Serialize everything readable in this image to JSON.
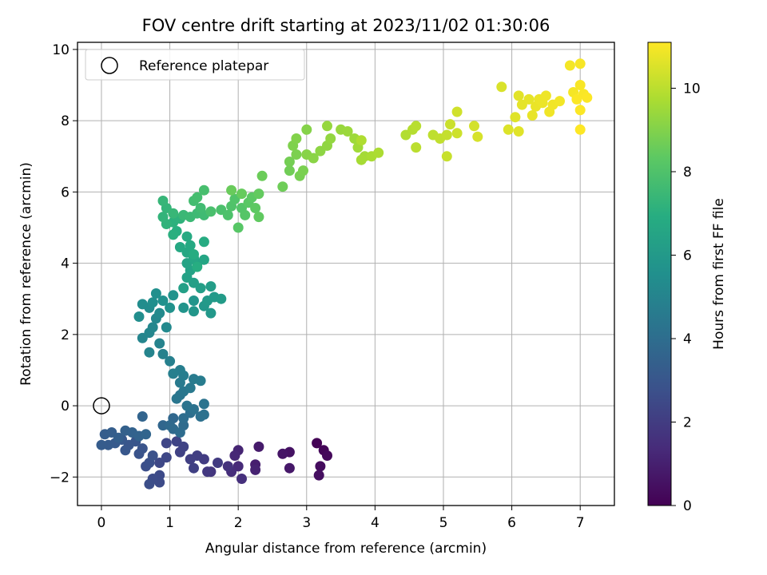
{
  "chart_data": {
    "type": "scatter",
    "title": "FOV centre drift starting at 2023/11/02 01:30:06",
    "xlabel": "Angular distance from reference (arcmin)",
    "ylabel": "Rotation from reference (arcmin)",
    "xlim": [
      -0.35,
      7.5
    ],
    "ylim": [
      -2.8,
      10.2
    ],
    "xticks": [
      0,
      1,
      2,
      3,
      4,
      5,
      6,
      7
    ],
    "xtick_labels": [
      "0",
      "1",
      "2",
      "3",
      "4",
      "5",
      "6",
      "7"
    ],
    "yticks": [
      -2,
      0,
      2,
      4,
      6,
      8,
      10
    ],
    "ytick_labels": [
      "−2",
      "0",
      "2",
      "4",
      "6",
      "8",
      "10"
    ],
    "grid": true,
    "legend": {
      "position": "upper-left",
      "entries": [
        {
          "label": "Reference platepar",
          "marker": "open-circle"
        }
      ]
    },
    "reference_point": {
      "x": 0,
      "y": 0
    },
    "colormap": "viridis",
    "colorbar": {
      "label": "Hours from first FF file",
      "range": [
        0,
        11.1
      ],
      "ticks": [
        0,
        2,
        4,
        6,
        8,
        10
      ],
      "tick_labels": [
        "0",
        "2",
        "4",
        "6",
        "8",
        "10"
      ]
    },
    "points": [
      [
        3.15,
        -1.05,
        0.05
      ],
      [
        3.25,
        -1.25,
        0.15
      ],
      [
        3.3,
        -1.4,
        0.25
      ],
      [
        3.2,
        -1.7,
        0.35
      ],
      [
        3.18,
        -1.95,
        0.45
      ],
      [
        2.75,
        -1.3,
        0.55
      ],
      [
        2.65,
        -1.35,
        0.65
      ],
      [
        2.75,
        -1.75,
        0.75
      ],
      [
        2.3,
        -1.15,
        0.85
      ],
      [
        2.25,
        -1.65,
        0.95
      ],
      [
        2.25,
        -1.8,
        1.05
      ],
      [
        2.0,
        -1.25,
        1.15
      ],
      [
        1.95,
        -1.4,
        1.25
      ],
      [
        2.0,
        -1.7,
        1.35
      ],
      [
        1.9,
        -1.85,
        1.45
      ],
      [
        2.05,
        -2.05,
        1.55
      ],
      [
        1.85,
        -1.7,
        1.65
      ],
      [
        1.6,
        -1.85,
        1.75
      ],
      [
        1.55,
        -1.85,
        1.85
      ],
      [
        1.7,
        -1.6,
        1.95
      ],
      [
        1.5,
        -1.5,
        2.0
      ],
      [
        1.4,
        -1.4,
        2.05
      ],
      [
        1.3,
        -1.5,
        2.1
      ],
      [
        1.35,
        -1.75,
        2.15
      ],
      [
        1.15,
        -1.3,
        2.2
      ],
      [
        1.2,
        -1.15,
        2.25
      ],
      [
        1.1,
        -1.0,
        2.3
      ],
      [
        0.95,
        -1.05,
        2.35
      ],
      [
        0.95,
        -1.45,
        2.4
      ],
      [
        0.85,
        -1.6,
        2.45
      ],
      [
        0.85,
        -1.95,
        2.5
      ],
      [
        0.85,
        -2.15,
        2.55
      ],
      [
        0.75,
        -2.05,
        2.6
      ],
      [
        0.7,
        -2.2,
        2.65
      ],
      [
        0.65,
        -1.7,
        2.7
      ],
      [
        0.7,
        -1.6,
        2.75
      ],
      [
        0.75,
        -1.4,
        2.8
      ],
      [
        0.55,
        -1.35,
        2.85
      ],
      [
        0.6,
        -1.2,
        2.9
      ],
      [
        0.5,
        -1.0,
        2.95
      ],
      [
        0.4,
        -1.1,
        3.0
      ],
      [
        0.35,
        -1.25,
        3.05
      ],
      [
        0.3,
        -0.95,
        3.1
      ],
      [
        0.2,
        -1.05,
        3.15
      ],
      [
        0.1,
        -1.1,
        3.2
      ],
      [
        0.0,
        -1.1,
        3.25
      ],
      [
        0.05,
        -0.8,
        3.3
      ],
      [
        0.15,
        -0.75,
        3.35
      ],
      [
        0.25,
        -0.9,
        3.4
      ],
      [
        0.35,
        -0.7,
        3.45
      ],
      [
        0.45,
        -0.75,
        3.5
      ],
      [
        0.55,
        -0.85,
        3.55
      ],
      [
        0.6,
        -0.3,
        3.6
      ],
      [
        0.65,
        -0.8,
        3.65
      ],
      [
        0.9,
        -0.55,
        3.7
      ],
      [
        1.05,
        -0.35,
        3.75
      ],
      [
        1.0,
        -0.55,
        3.8
      ],
      [
        1.05,
        -0.65,
        3.85
      ],
      [
        1.2,
        -0.55,
        3.9
      ],
      [
        1.15,
        -0.75,
        3.95
      ],
      [
        1.2,
        -0.35,
        4.0
      ],
      [
        1.3,
        -0.2,
        4.05
      ],
      [
        1.45,
        -0.3,
        4.1
      ],
      [
        1.5,
        -0.25,
        4.15
      ],
      [
        1.35,
        -0.1,
        4.2
      ],
      [
        1.5,
        0.05,
        4.25
      ],
      [
        1.25,
        0.0,
        4.3
      ],
      [
        1.15,
        0.3,
        4.35
      ],
      [
        1.1,
        0.2,
        4.4
      ],
      [
        1.2,
        0.4,
        4.45
      ],
      [
        1.3,
        0.5,
        4.5
      ],
      [
        1.15,
        0.65,
        4.55
      ],
      [
        1.35,
        0.75,
        4.6
      ],
      [
        1.45,
        0.7,
        4.65
      ],
      [
        1.2,
        0.85,
        4.7
      ],
      [
        1.15,
        1.0,
        4.75
      ],
      [
        1.05,
        0.9,
        4.8
      ],
      [
        1.0,
        1.25,
        4.85
      ],
      [
        0.9,
        1.45,
        4.9
      ],
      [
        0.85,
        1.75,
        4.95
      ],
      [
        0.7,
        1.5,
        5.0
      ],
      [
        0.6,
        1.9,
        5.05
      ],
      [
        0.7,
        2.05,
        5.1
      ],
      [
        0.75,
        2.2,
        5.15
      ],
      [
        0.8,
        2.45,
        5.2
      ],
      [
        0.95,
        2.2,
        5.25
      ],
      [
        0.85,
        2.6,
        5.3
      ],
      [
        0.7,
        2.75,
        5.35
      ],
      [
        0.6,
        2.85,
        5.4
      ],
      [
        0.55,
        2.5,
        5.45
      ],
      [
        0.75,
        2.9,
        5.5
      ],
      [
        0.8,
        3.15,
        5.55
      ],
      [
        0.9,
        2.95,
        5.6
      ],
      [
        1.0,
        2.75,
        5.65
      ],
      [
        1.05,
        3.1,
        5.7
      ],
      [
        1.2,
        2.75,
        5.75
      ],
      [
        1.35,
        2.95,
        5.8
      ],
      [
        1.35,
        2.65,
        5.85
      ],
      [
        1.5,
        2.8,
        5.9
      ],
      [
        1.6,
        2.6,
        5.95
      ],
      [
        1.55,
        2.95,
        6.0
      ],
      [
        1.65,
        3.05,
        6.05
      ],
      [
        1.75,
        3.0,
        6.1
      ],
      [
        1.6,
        3.35,
        6.15
      ],
      [
        1.45,
        3.3,
        6.2
      ],
      [
        1.35,
        3.45,
        6.25
      ],
      [
        1.2,
        3.3,
        6.3
      ],
      [
        1.25,
        3.6,
        6.35
      ],
      [
        1.3,
        3.8,
        6.4
      ],
      [
        1.25,
        4.0,
        6.45
      ],
      [
        1.4,
        4.0,
        6.5
      ],
      [
        1.5,
        4.1,
        6.55
      ],
      [
        1.35,
        4.15,
        6.6
      ],
      [
        1.25,
        4.3,
        6.65
      ],
      [
        1.15,
        4.45,
        6.7
      ],
      [
        1.3,
        4.5,
        6.75
      ],
      [
        1.25,
        4.75,
        6.8
      ],
      [
        1.5,
        4.6,
        6.85
      ],
      [
        1.35,
        4.25,
        6.9
      ],
      [
        1.4,
        3.9,
        6.95
      ],
      [
        1.1,
        4.9,
        7.0
      ],
      [
        1.05,
        4.8,
        7.05
      ],
      [
        1.05,
        5.15,
        7.1
      ],
      [
        1.15,
        5.25,
        7.15
      ],
      [
        0.95,
        5.1,
        7.2
      ],
      [
        0.9,
        5.3,
        7.25
      ],
      [
        0.95,
        5.55,
        7.3
      ],
      [
        0.9,
        5.75,
        7.35
      ],
      [
        1.05,
        5.4,
        7.4
      ],
      [
        1.2,
        5.35,
        7.45
      ],
      [
        1.3,
        5.3,
        7.5
      ],
      [
        1.4,
        5.4,
        7.55
      ],
      [
        1.5,
        5.35,
        7.6
      ],
      [
        1.45,
        5.55,
        7.65
      ],
      [
        1.35,
        5.75,
        7.7
      ],
      [
        1.4,
        5.85,
        7.75
      ],
      [
        1.5,
        6.05,
        7.8
      ],
      [
        1.6,
        5.45,
        7.85
      ],
      [
        1.75,
        5.5,
        7.9
      ],
      [
        1.85,
        5.35,
        7.95
      ],
      [
        1.9,
        5.6,
        8.0
      ],
      [
        1.95,
        5.8,
        8.05
      ],
      [
        2.05,
        5.55,
        8.1
      ],
      [
        2.1,
        5.35,
        8.15
      ],
      [
        2.0,
        5.0,
        8.2
      ],
      [
        2.15,
        5.7,
        8.25
      ],
      [
        2.2,
        5.85,
        8.3
      ],
      [
        2.25,
        5.55,
        8.35
      ],
      [
        2.3,
        5.3,
        8.4
      ],
      [
        2.3,
        5.95,
        8.45
      ],
      [
        2.05,
        5.95,
        8.5
      ],
      [
        1.9,
        6.05,
        8.55
      ],
      [
        2.35,
        6.45,
        8.6
      ],
      [
        2.65,
        6.15,
        8.65
      ],
      [
        2.75,
        6.6,
        8.7
      ],
      [
        2.75,
        6.85,
        8.75
      ],
      [
        2.9,
        6.45,
        8.8
      ],
      [
        2.95,
        6.6,
        8.85
      ],
      [
        2.85,
        7.05,
        8.9
      ],
      [
        2.8,
        7.3,
        8.95
      ],
      [
        2.85,
        7.5,
        9.0
      ],
      [
        3.0,
        7.75,
        9.05
      ],
      [
        3.0,
        7.05,
        9.1
      ],
      [
        3.1,
        6.95,
        9.15
      ],
      [
        3.2,
        7.15,
        9.2
      ],
      [
        3.3,
        7.3,
        9.25
      ],
      [
        3.35,
        7.5,
        9.3
      ],
      [
        3.3,
        7.85,
        9.35
      ],
      [
        3.5,
        7.75,
        9.4
      ],
      [
        3.6,
        7.7,
        9.45
      ],
      [
        3.7,
        7.5,
        9.5
      ],
      [
        3.75,
        7.25,
        9.55
      ],
      [
        3.85,
        7.0,
        9.6
      ],
      [
        3.8,
        6.9,
        9.65
      ],
      [
        3.95,
        7.0,
        9.7
      ],
      [
        4.05,
        7.1,
        9.75
      ],
      [
        3.8,
        7.45,
        9.8
      ],
      [
        4.45,
        7.6,
        9.85
      ],
      [
        4.55,
        7.75,
        9.9
      ],
      [
        4.6,
        7.85,
        9.95
      ],
      [
        4.6,
        7.25,
        10.0
      ],
      [
        4.85,
        7.6,
        10.05
      ],
      [
        4.95,
        7.5,
        10.1
      ],
      [
        5.05,
        7.6,
        10.15
      ],
      [
        5.05,
        7.0,
        10.2
      ],
      [
        5.1,
        7.9,
        10.25
      ],
      [
        5.2,
        7.65,
        10.3
      ],
      [
        5.2,
        8.25,
        10.35
      ],
      [
        5.45,
        7.85,
        10.4
      ],
      [
        5.5,
        7.55,
        10.45
      ],
      [
        5.85,
        8.95,
        10.5
      ],
      [
        5.95,
        7.75,
        10.55
      ],
      [
        6.05,
        8.1,
        10.6
      ],
      [
        6.1,
        7.7,
        10.62
      ],
      [
        6.1,
        8.7,
        10.65
      ],
      [
        6.15,
        8.45,
        10.7
      ],
      [
        6.25,
        8.6,
        10.72
      ],
      [
        6.3,
        8.15,
        10.75
      ],
      [
        6.35,
        8.4,
        10.78
      ],
      [
        6.4,
        8.6,
        10.8
      ],
      [
        6.45,
        8.5,
        10.82
      ],
      [
        6.5,
        8.7,
        10.85
      ],
      [
        6.55,
        8.25,
        10.88
      ],
      [
        6.6,
        8.45,
        10.9
      ],
      [
        6.7,
        8.55,
        10.92
      ],
      [
        6.85,
        9.55,
        10.95
      ],
      [
        6.9,
        8.8,
        10.97
      ],
      [
        7.0,
        9.6,
        11.0
      ],
      [
        7.0,
        9.0,
        11.02
      ],
      [
        7.05,
        8.75,
        11.04
      ],
      [
        7.0,
        8.3,
        11.06
      ],
      [
        6.95,
        8.6,
        11.07
      ],
      [
        7.1,
        8.65,
        11.08
      ],
      [
        7.0,
        7.75,
        11.1
      ]
    ]
  }
}
